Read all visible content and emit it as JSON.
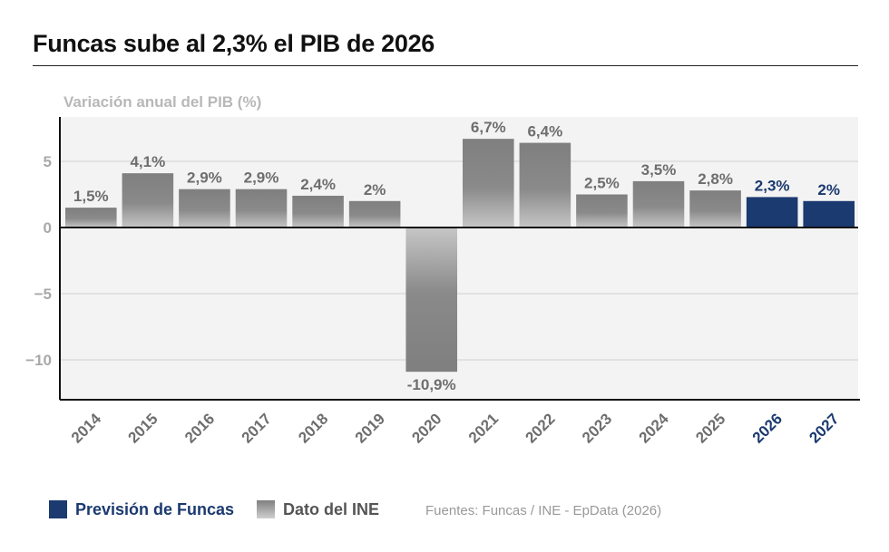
{
  "header": {
    "title": "Funcas sube al 2,3% el PIB de 2026"
  },
  "chart_data": {
    "type": "bar",
    "ylabel": "Variación anual del PIB (%)",
    "ylim": [
      -13,
      8.5
    ],
    "yticks": [
      5,
      0,
      -5,
      -10
    ],
    "ytick_labels": [
      "5",
      "0",
      "−5",
      "−10"
    ],
    "grid": true,
    "legend_position": "bottom-left",
    "categories": [
      "2014",
      "2015",
      "2016",
      "2017",
      "2018",
      "2019",
      "2020",
      "2021",
      "2022",
      "2023",
      "2024",
      "2025",
      "2026",
      "2027"
    ],
    "values": [
      1.5,
      4.1,
      2.9,
      2.9,
      2.4,
      2.0,
      -10.9,
      6.7,
      6.4,
      2.5,
      3.5,
      2.8,
      2.3,
      2.0
    ],
    "value_labels": [
      "1,5%",
      "4,1%",
      "2,9%",
      "2,9%",
      "2,4%",
      "2%",
      "-10,9%",
      "6,7%",
      "6,4%",
      "2,5%",
      "3,5%",
      "2,8%",
      "2,3%",
      "2%"
    ],
    "series_type": [
      "ine",
      "ine",
      "ine",
      "ine",
      "ine",
      "ine",
      "ine",
      "ine",
      "ine",
      "ine",
      "ine",
      "ine",
      "funcas",
      "funcas"
    ],
    "colors": {
      "funcas": "#1b3a70",
      "ine": "#7f7f7f",
      "ine_light": "#c4c4c4",
      "plot_bg": "#f3f3f3",
      "grid": "#d2d2d2",
      "tick_text": "#a9a9a9",
      "label_text": "#6e6e6e"
    }
  },
  "legend": {
    "items": [
      {
        "label": "Previsión de Funcas",
        "color": "#1b3a70"
      },
      {
        "label": "Dato del INE",
        "color": "#7f7f7f"
      }
    ]
  },
  "footer": {
    "sources": "Fuentes: Funcas / INE - EpData (2026)"
  }
}
